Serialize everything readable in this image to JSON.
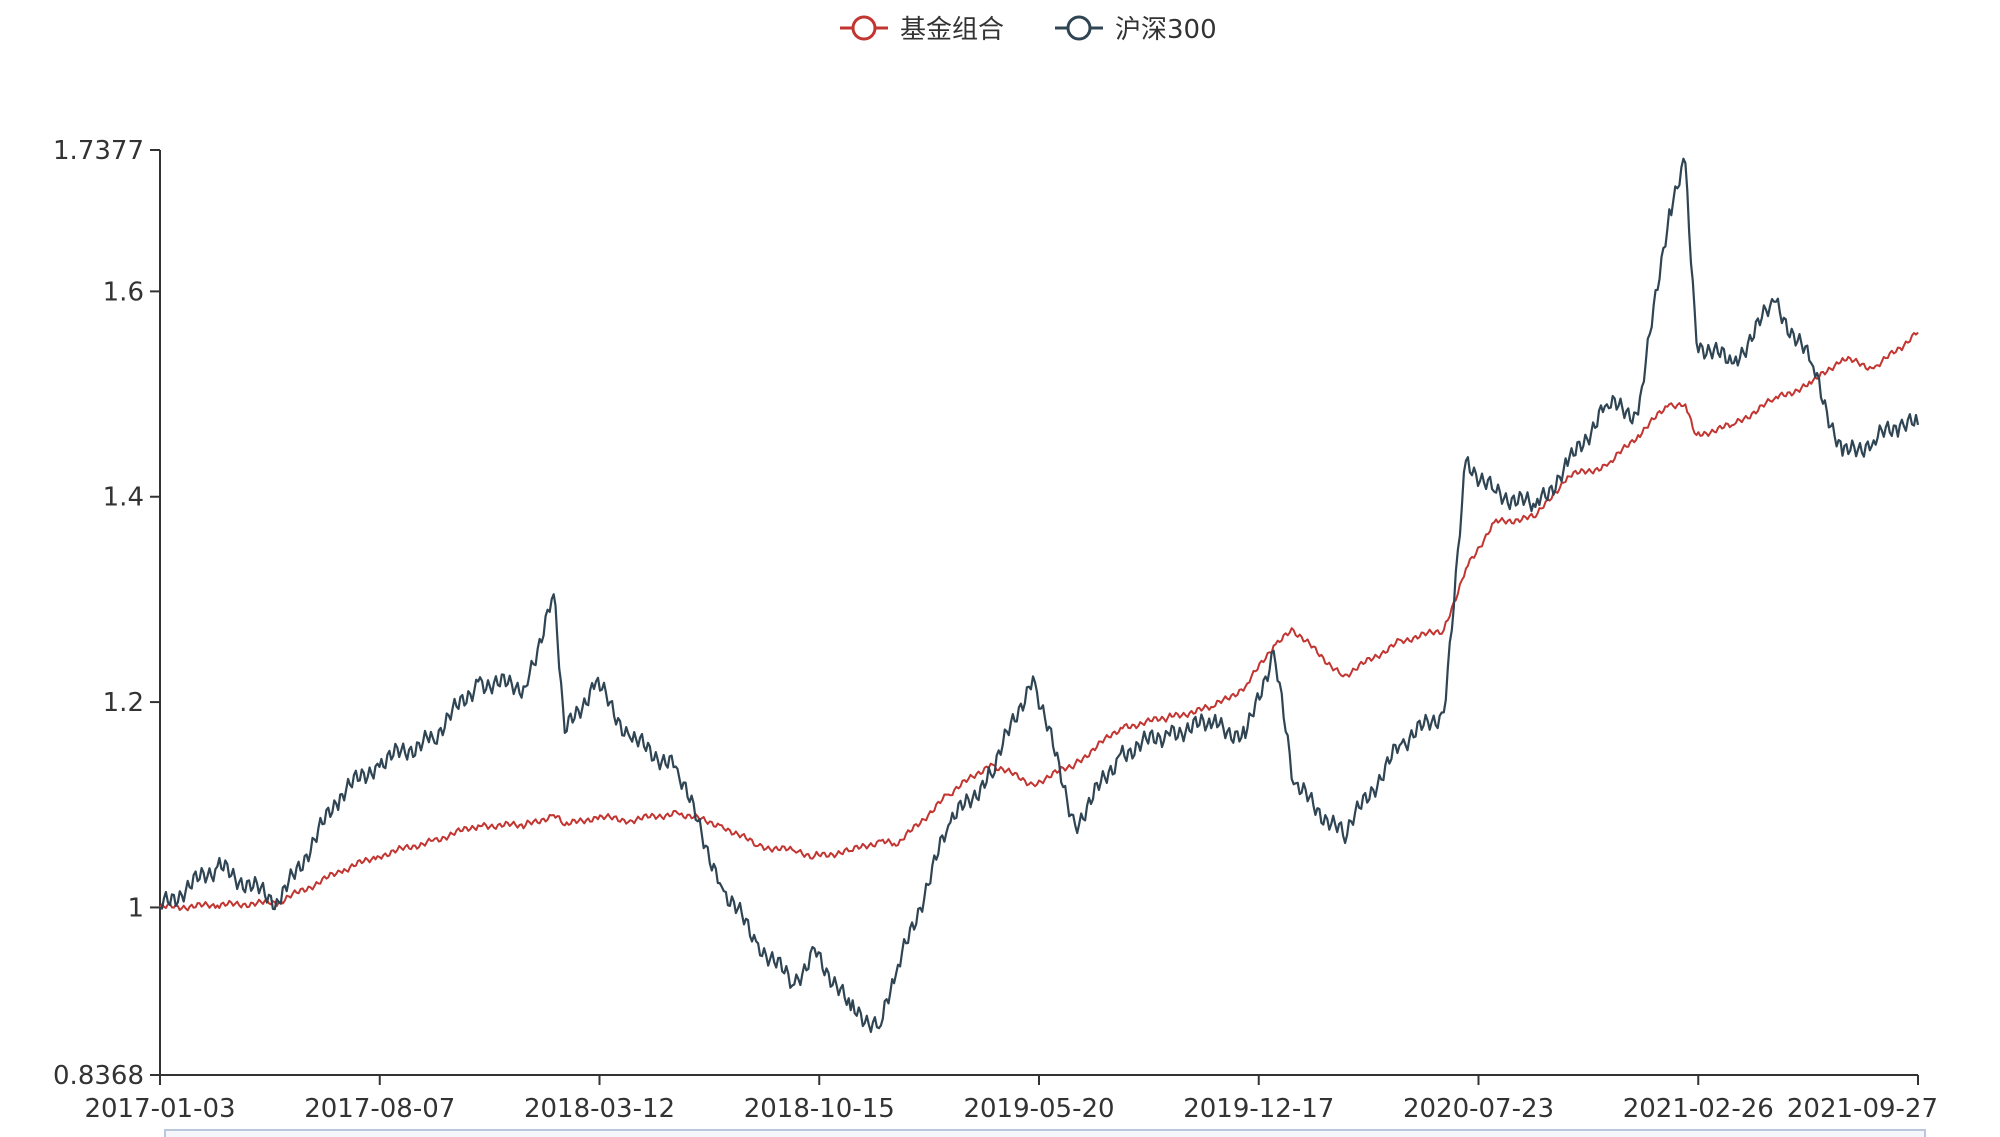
{
  "chart_data": {
    "type": "line",
    "title": "",
    "xlabel": "",
    "ylabel": "",
    "x_tick_labels": [
      "2017-01-03",
      "2017-08-07",
      "2018-03-12",
      "2018-10-15",
      "2019-05-20",
      "2019-12-17",
      "2020-07-23",
      "2021-02-26",
      "2021-09-27"
    ],
    "y_tick_labels": [
      "1.7377",
      "1.6",
      "1.4",
      "1.2",
      "1",
      "0.8368"
    ],
    "ylim": [
      0.8368,
      1.7377
    ],
    "grid": false,
    "legend_position": "top-center",
    "x": [
      "2017-01-03",
      "2017-03-01",
      "2017-05-01",
      "2017-07-01",
      "2017-08-07",
      "2017-10-01",
      "2017-11-15",
      "2018-01-01",
      "2018-01-29",
      "2018-02-09",
      "2018-03-12",
      "2018-04-15",
      "2018-06-01",
      "2018-07-15",
      "2018-08-20",
      "2018-09-25",
      "2018-10-15",
      "2018-11-20",
      "2018-12-20",
      "2019-01-04",
      "2019-02-25",
      "2019-04-08",
      "2019-05-20",
      "2019-07-01",
      "2019-08-15",
      "2019-10-01",
      "2019-11-15",
      "2019-12-17",
      "2020-01-14",
      "2020-02-03",
      "2020-03-23",
      "2020-05-20",
      "2020-07-01",
      "2020-07-23",
      "2020-08-20",
      "2020-09-30",
      "2020-11-01",
      "2020-12-10",
      "2021-01-10",
      "2021-02-10",
      "2021-02-26",
      "2021-03-09",
      "2021-04-15",
      "2021-05-25",
      "2021-07-01",
      "2021-08-01",
      "2021-09-01",
      "2021-09-27",
      "2021-10-15"
    ],
    "series": [
      {
        "name": "基金组合",
        "color": "#c23531",
        "values": [
          1.0,
          1.002,
          1.005,
          1.035,
          1.05,
          1.065,
          1.08,
          1.08,
          1.09,
          1.08,
          1.088,
          1.085,
          1.092,
          1.08,
          1.06,
          1.055,
          1.05,
          1.055,
          1.065,
          1.06,
          1.11,
          1.14,
          1.12,
          1.14,
          1.175,
          1.185,
          1.195,
          1.215,
          1.255,
          1.27,
          1.225,
          1.26,
          1.27,
          1.33,
          1.375,
          1.38,
          1.42,
          1.43,
          1.46,
          1.49,
          1.49,
          1.46,
          1.47,
          1.495,
          1.51,
          1.535,
          1.525,
          1.545,
          1.56
        ]
      },
      {
        "name": "沪深300",
        "color": "#2f4554",
        "values": [
          1.0,
          1.04,
          1.005,
          1.11,
          1.14,
          1.165,
          1.22,
          1.215,
          1.305,
          1.17,
          1.22,
          1.165,
          1.135,
          1.02,
          0.965,
          0.925,
          0.96,
          0.9,
          0.885,
          0.935,
          1.08,
          1.13,
          1.225,
          1.08,
          1.15,
          1.17,
          1.18,
          1.165,
          1.25,
          1.12,
          1.07,
          1.16,
          1.19,
          1.435,
          1.405,
          1.39,
          1.43,
          1.49,
          1.48,
          1.68,
          1.725,
          1.55,
          1.53,
          1.59,
          1.53,
          1.44,
          1.455,
          1.47,
          1.47
        ]
      }
    ]
  }
}
